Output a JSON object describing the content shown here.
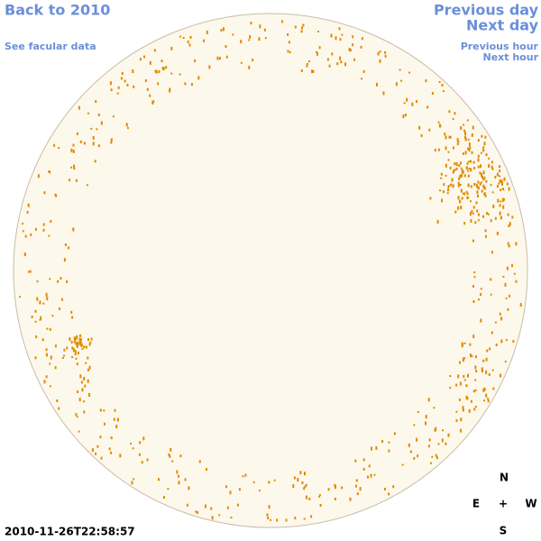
{
  "navigation": {
    "back": "Back to 2010",
    "facular": "See facular data",
    "previous_day": "Previous day",
    "next_day": "Next day",
    "previous_hour": "Previous hour",
    "next_hour": "Next hour"
  },
  "timestamp": "2010-11-26T22:58:57",
  "compass": {
    "north": "N",
    "east": "E",
    "center": "+",
    "west": "W",
    "south": "S"
  }
}
